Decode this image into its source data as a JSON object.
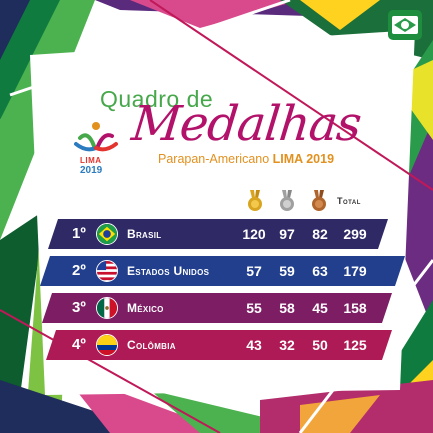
{
  "header": {
    "title_line1": "Quadro de",
    "title_line2": "Medalhas",
    "subtitle_event": "Parapan-Americano",
    "subtitle_city": "LIMA 2019"
  },
  "logo": {
    "city": "LIMA",
    "year": "2019"
  },
  "table": {
    "total_label": "Total",
    "rows": [
      {
        "rank": "1º",
        "country": "Brasil",
        "gold": "120",
        "silver": "97",
        "bronze": "82",
        "total": "299",
        "color": "#2f2a66"
      },
      {
        "rank": "2º",
        "country": "Estados Unidos",
        "gold": "57",
        "silver": "59",
        "bronze": "63",
        "total": "179",
        "color": "#223f8d"
      },
      {
        "rank": "3º",
        "country": "México",
        "gold": "55",
        "silver": "58",
        "bronze": "45",
        "total": "158",
        "color": "#7d1d64"
      },
      {
        "rank": "4º",
        "country": "Colômbia",
        "gold": "43",
        "silver": "32",
        "bronze": "50",
        "total": "125",
        "color": "#ae1a55"
      }
    ]
  },
  "colors": {
    "gold": "#d9a520",
    "silver": "#a0a0a0",
    "bronze": "#b0652c",
    "title_green": "#46a84a",
    "title_magenta": "#b3126a",
    "subtitle_orange": "#e2911f"
  },
  "icons": [
    "gold-medal-icon",
    "silver-medal-icon",
    "bronze-medal-icon",
    "brazil-flag-icon",
    "usa-flag-icon",
    "mexico-flag-icon",
    "colombia-flag-icon",
    "brazil-badge-icon",
    "lima-2019-logo"
  ]
}
